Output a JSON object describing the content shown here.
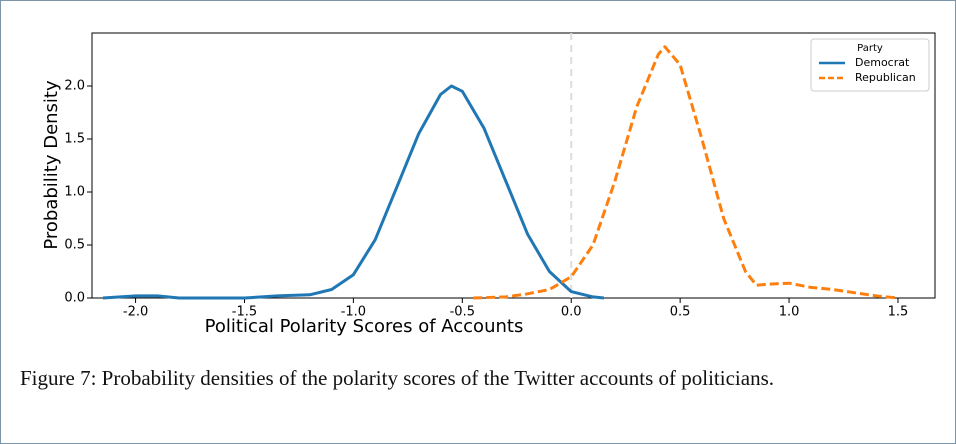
{
  "chart_data": {
    "type": "line",
    "xlabel": "Political Polarity Scores of Accounts",
    "ylabel": "Probability Density",
    "xlim": [
      -2.2,
      1.67
    ],
    "ylim": [
      0,
      2.5
    ],
    "xticks": [
      {
        "value": -2.0,
        "label": "-2.0"
      },
      {
        "value": -1.5,
        "label": "-1.5"
      },
      {
        "value": -1.0,
        "label": "-1.0"
      },
      {
        "value": -0.5,
        "label": "-0.5"
      },
      {
        "value": 0.0,
        "label": "0.0"
      },
      {
        "value": 0.5,
        "label": "0.5"
      },
      {
        "value": 1.0,
        "label": "1.0"
      },
      {
        "value": 1.5,
        "label": "1.5"
      }
    ],
    "yticks": [
      {
        "value": 0.0,
        "label": "0.0"
      },
      {
        "value": 0.5,
        "label": "0.5"
      },
      {
        "value": 1.0,
        "label": "1.0"
      },
      {
        "value": 1.5,
        "label": "1.5"
      },
      {
        "value": 2.0,
        "label": "2.0"
      }
    ],
    "reference_line_x": 0,
    "legend_title": "Party",
    "legend_position": "upper right",
    "series": [
      {
        "name": "Democrat",
        "color": "#1f77b4",
        "dash": false,
        "x": [
          -2.15,
          -2.0,
          -1.9,
          -1.8,
          -1.5,
          -1.35,
          -1.2,
          -1.1,
          -1.0,
          -0.9,
          -0.8,
          -0.7,
          -0.6,
          -0.55,
          -0.5,
          -0.4,
          -0.3,
          -0.2,
          -0.1,
          0.0,
          0.1,
          0.15
        ],
        "values": [
          0,
          0.02,
          0.02,
          0,
          0,
          0.02,
          0.03,
          0.08,
          0.22,
          0.55,
          1.05,
          1.55,
          1.92,
          2.0,
          1.95,
          1.6,
          1.1,
          0.6,
          0.25,
          0.06,
          0.01,
          0
        ]
      },
      {
        "name": "Republican",
        "color": "#ff7f0e",
        "dash": true,
        "x": [
          -0.45,
          -0.3,
          -0.2,
          -0.1,
          0.0,
          0.1,
          0.2,
          0.3,
          0.4,
          0.43,
          0.5,
          0.6,
          0.7,
          0.8,
          0.85,
          0.9,
          1.0,
          1.1,
          1.2,
          1.3,
          1.4,
          1.5
        ],
        "values": [
          0,
          0.01,
          0.04,
          0.08,
          0.2,
          0.5,
          1.1,
          1.8,
          2.3,
          2.37,
          2.2,
          1.5,
          0.75,
          0.25,
          0.12,
          0.13,
          0.14,
          0.1,
          0.08,
          0.05,
          0.02,
          0
        ]
      }
    ]
  },
  "caption": "Figure 7: Probability densities of the polarity scores of the Twitter accounts of politicians."
}
